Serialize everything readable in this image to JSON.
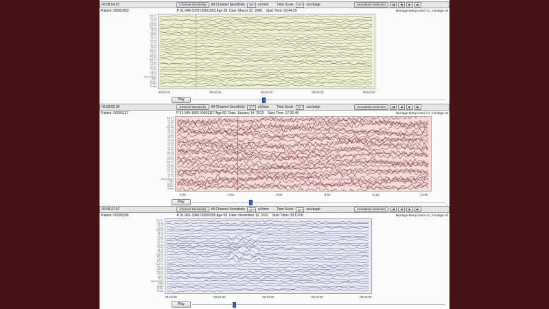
{
  "window": {
    "side_bar_color": "#481114",
    "content_background": "#fbfbfb",
    "slider_color": "#2f62d8"
  },
  "channel_labels": [
    "Fp1-F7",
    "F7-T3",
    "T3-T5",
    "T5-O1",
    "Fp2-F8",
    "F8-T4",
    "T4-T6",
    "T6-O2",
    "A1-T3",
    "T3-C3",
    "C3-Cz",
    "Cz-C4",
    "C4-T4",
    "T4-A2",
    "Fp1-F3",
    "F3-C3",
    "C3-P3",
    "P3-O1",
    "Fp2-F4",
    "F4-C4",
    "C4-P4",
    "P4-O2",
    "Fz-Cz",
    "Cz-Pz",
    "T1-T2",
    "EKG1-EKG2",
    "EMG",
    "EOG1",
    "EOG2",
    "Photic"
  ],
  "panels": [
    {
      "elapsed": "00:08:54.97",
      "toolbar": {
        "channel_sensitivity_button": "Channel Sensitivity",
        "all_sensitivity_label": "All Channel Sensitivity",
        "sensitivity_value": "20",
        "sensitivity_unit": "uV/mm",
        "time_scale_label": "Time Scale",
        "time_scale_value": "30",
        "time_scale_unit": "sec/page",
        "annotation_button": "Annotation Selection",
        "nav": [
          "|◀",
          "◀",
          "▶",
          "▶|"
        ]
      },
      "patient": {
        "id_label": "Patient: 00001953",
        "details": "P 91-049-1978 00001953 Age:28  Date: March 22, 2006    Start Time: 09:44:20",
        "montage": "Montage Being Used: A1, montage A8"
      },
      "chart": {
        "background": "#eef0d9",
        "grid_color": "#d6d8b2",
        "trace_color": "#6f6f2a",
        "marker": {
          "fraction": 0.17,
          "color": "#a2a268"
        },
        "time_ticks": [
          "09:52:02",
          "09:52:32",
          "09:53:02",
          "09:53:32",
          "09:54:02"
        ]
      },
      "play_label": "Play"
    },
    {
      "elapsed": "00:09:02.30",
      "toolbar": {
        "channel_sensitivity_button": "Channel Sensitivity",
        "all_sensitivity_label": "All Channel Sensitivity",
        "sensitivity_value": "20",
        "sensitivity_unit": "uV/mm",
        "time_scale_label": "Time Scale",
        "time_scale_value": "30",
        "time_scale_unit": "sec/page",
        "annotation_button": "Annotation Selection",
        "nav": [
          "|◀",
          "◀",
          "▶",
          "▶|"
        ]
      },
      "patient": {
        "id_label": "Patient: 00001117",
        "details": "P 91-049-1955 00001117 Age:60  Date: January 14, 2013    Start Time: 17:26:48",
        "montage": "Montage Being Used: A1, montage A8"
      },
      "chart": {
        "background": "#f6dbdb",
        "grid_color": "#e3bcbc",
        "trace_color": "#7d3b3b",
        "marker": {
          "fraction": 0.24,
          "color": "#a05050"
        },
        "time_ticks": [
          "0:00",
          "2:58",
          "5:56",
          "8:54",
          "11:52",
          "14:50"
        ]
      },
      "play_label": "Play"
    },
    {
      "elapsed": "00:06:27.67",
      "toolbar": {
        "channel_sensitivity_button": "Channel Sensitivity",
        "all_sensitivity_label": "All Channel Sensitivity",
        "sensitivity_value": "20",
        "sensitivity_unit": "uV/mm",
        "time_scale_label": "Time Scale",
        "time_scale_value": "30",
        "time_scale_unit": "sec/page",
        "annotation_button": "Annotation Selection",
        "nav": [
          "|◀",
          "◀",
          "▶",
          "▶|"
        ]
      },
      "patient": {
        "id_label": "Patient: 00000295",
        "details": "P 91-061-1945 00000295 Age:69  Date: November 10, 2016    Start Time: 09:13:08",
        "montage": "Montage Being Used: A1, montage A8"
      },
      "chart": {
        "background": "#e9eaf6",
        "grid_color": "#c8cadf",
        "trace_color": "#4a4f72",
        "marker": null,
        "time_ticks": [
          "09:18:06",
          "09:18:36",
          "09:19:06",
          "09:19:36",
          "09:20:06"
        ]
      },
      "play_label": "Play"
    }
  ]
}
